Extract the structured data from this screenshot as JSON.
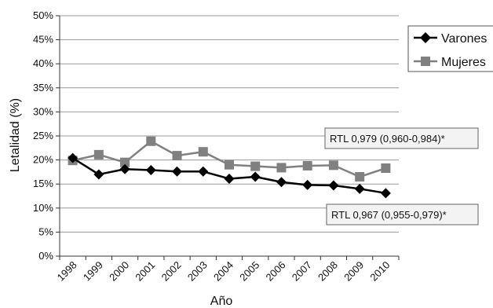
{
  "chart_data": {
    "type": "line",
    "xlabel": "Año",
    "ylabel": "Letalidad (%)",
    "categories": [
      "1998",
      "1999",
      "2000",
      "2001",
      "2002",
      "2003",
      "2004",
      "2005",
      "2006",
      "2007",
      "2008",
      "2009",
      "2010"
    ],
    "ylim": [
      0,
      50
    ],
    "yticks": [
      "0%",
      "5%",
      "10%",
      "15%",
      "20%",
      "25%",
      "30%",
      "35%",
      "40%",
      "45%",
      "50%"
    ],
    "grid": true,
    "legend_position": "right",
    "series": [
      {
        "name": "Varones",
        "color": "#000000",
        "marker": "diamond",
        "values": [
          20.4,
          17.0,
          18.1,
          17.9,
          17.6,
          17.6,
          16.1,
          16.5,
          15.4,
          14.8,
          14.7,
          14.0,
          13.1
        ]
      },
      {
        "name": "Mujeres",
        "color": "#808080",
        "marker": "square",
        "values": [
          19.9,
          21.1,
          19.5,
          23.9,
          20.9,
          21.7,
          19.0,
          18.7,
          18.4,
          18.8,
          18.9,
          16.5,
          18.3
        ]
      }
    ],
    "annotations": [
      {
        "series": "Mujeres",
        "text": "RTL 0,979 (0,960-0,984)*"
      },
      {
        "series": "Varones",
        "text": "RTL 0,967 (0,955-0,979)*"
      }
    ]
  }
}
